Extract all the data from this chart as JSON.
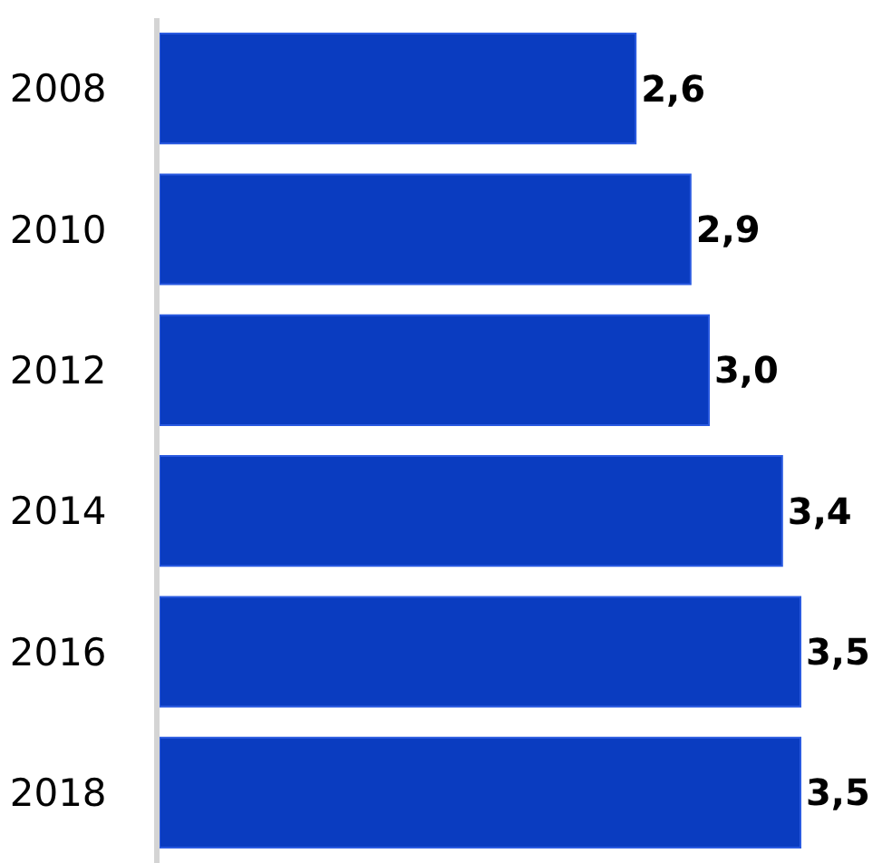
{
  "chart_data": {
    "type": "bar",
    "orientation": "horizontal",
    "categories": [
      "2008",
      "2010",
      "2012",
      "2014",
      "2016",
      "2018"
    ],
    "values": [
      2.6,
      2.9,
      3.0,
      3.4,
      3.5,
      3.5
    ],
    "value_labels": [
      "2,6",
      "2,9",
      "3,0",
      "3,4",
      "3,5",
      "3,5"
    ],
    "color": "#0a3cc0",
    "xlim": [
      0,
      4
    ],
    "tick_labels": "y"
  }
}
